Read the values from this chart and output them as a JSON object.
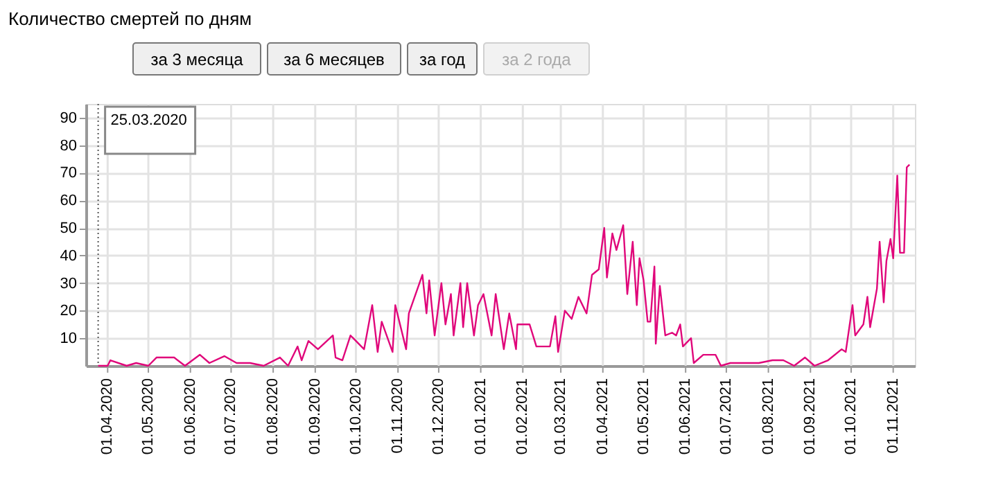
{
  "chart_data": {
    "type": "line",
    "title": "Количество смертей по дням",
    "annotations": [
      "за 3 месяца",
      "за 6 месяцев",
      "за год",
      "за 2 года"
    ],
    "x": [
      "2020-03-25",
      "2020-04-01",
      "2020-04-03",
      "2020-04-15",
      "2020-04-22",
      "2020-05-01",
      "2020-05-07",
      "2020-05-20",
      "2020-05-28",
      "2020-06-08",
      "2020-06-15",
      "2020-06-26",
      "2020-07-05",
      "2020-07-15",
      "2020-07-25",
      "2020-08-06",
      "2020-08-12",
      "2020-08-19",
      "2020-08-22",
      "2020-08-27",
      "2020-09-03",
      "2020-09-14",
      "2020-09-16",
      "2020-09-21",
      "2020-09-27",
      "2020-10-07",
      "2020-10-13",
      "2020-10-17",
      "2020-10-20",
      "2020-10-28",
      "2020-10-30",
      "2020-11-07",
      "2020-11-09",
      "2020-11-19",
      "2020-11-22",
      "2020-11-24",
      "2020-11-28",
      "2020-12-03",
      "2020-12-06",
      "2020-12-10",
      "2020-12-12",
      "2020-12-17",
      "2020-12-19",
      "2020-12-22",
      "2020-12-27",
      "2020-12-30",
      "2021-01-03",
      "2021-01-09",
      "2021-01-12",
      "2021-01-18",
      "2021-01-22",
      "2021-01-27",
      "2021-01-28",
      "2021-02-06",
      "2021-02-11",
      "2021-02-21",
      "2021-02-25",
      "2021-02-27",
      "2021-03-04",
      "2021-03-09",
      "2021-03-14",
      "2021-03-20",
      "2021-03-24",
      "2021-03-29",
      "2021-04-02",
      "2021-04-04",
      "2021-04-08",
      "2021-04-11",
      "2021-04-16",
      "2021-04-19",
      "2021-04-23",
      "2021-04-26",
      "2021-04-28",
      "2021-05-01",
      "2021-05-04",
      "2021-05-06",
      "2021-05-09",
      "2021-05-10",
      "2021-05-13",
      "2021-05-17",
      "2021-05-22",
      "2021-05-25",
      "2021-05-28",
      "2021-05-30",
      "2021-06-05",
      "2021-06-07",
      "2021-06-14",
      "2021-06-23",
      "2021-06-27",
      "2021-07-04",
      "2021-07-18",
      "2021-07-25",
      "2021-08-04",
      "2021-08-12",
      "2021-08-20",
      "2021-08-28",
      "2021-09-04",
      "2021-09-14",
      "2021-09-24",
      "2021-09-27",
      "2021-10-02",
      "2021-10-04",
      "2021-10-10",
      "2021-10-13",
      "2021-10-15",
      "2021-10-20",
      "2021-10-22",
      "2021-10-25",
      "2021-10-27",
      "2021-10-30",
      "2021-11-01",
      "2021-11-04",
      "2021-11-06",
      "2021-11-09",
      "2021-11-11",
      "2021-11-13"
    ],
    "series": [
      {
        "color": "#e0067a",
        "values": [
          0,
          0,
          2,
          0,
          1,
          0,
          3,
          3,
          0,
          4,
          1,
          3.5,
          1,
          1,
          0,
          3,
          0,
          7,
          2,
          9,
          6,
          11,
          3,
          2,
          11,
          6,
          22,
          5,
          16,
          5,
          22,
          6,
          19,
          33,
          19,
          31,
          11,
          30,
          15,
          26,
          11,
          30,
          14,
          30,
          11,
          22,
          26,
          11,
          26,
          6,
          19,
          6,
          15,
          15,
          7,
          7,
          18,
          5,
          20,
          17,
          25,
          19,
          33,
          35,
          50,
          32,
          48,
          42,
          51,
          26,
          45,
          22,
          39,
          31,
          16,
          16,
          36,
          8,
          29,
          11,
          12,
          11,
          15,
          7,
          10,
          1,
          4,
          4,
          0,
          1,
          1,
          1,
          2,
          2,
          0,
          3,
          0,
          2,
          6,
          5,
          22,
          11,
          15,
          25,
          14,
          28,
          45,
          23,
          38,
          46,
          39,
          69,
          41,
          41,
          72,
          73
        ]
      }
    ],
    "xlim": [
      "2020-03-16",
      "2021-11-17"
    ],
    "xticks": [
      {
        "value": "2020-04-01",
        "label": "01.04.2020"
      },
      {
        "value": "2020-05-01",
        "label": "01.05.2020"
      },
      {
        "value": "2020-06-01",
        "label": "01.06.2020"
      },
      {
        "value": "2020-07-01",
        "label": "01.07.2020"
      },
      {
        "value": "2020-08-01",
        "label": "01.08.2020"
      },
      {
        "value": "2020-09-01",
        "label": "01.09.2020"
      },
      {
        "value": "2020-10-01",
        "label": "01.10.2020"
      },
      {
        "value": "2020-11-01",
        "label": "01.11.2020"
      },
      {
        "value": "2020-12-01",
        "label": "01.12.2020"
      },
      {
        "value": "2021-01-01",
        "label": "01.01.2021"
      },
      {
        "value": "2021-02-01",
        "label": "01.02.2021"
      },
      {
        "value": "2021-03-01",
        "label": "01.03.2021"
      },
      {
        "value": "2021-04-01",
        "label": "01.04.2021"
      },
      {
        "value": "2021-05-01",
        "label": "01.05.2021"
      },
      {
        "value": "2021-06-01",
        "label": "01.06.2021"
      },
      {
        "value": "2021-07-01",
        "label": "01.07.2021"
      },
      {
        "value": "2021-08-01",
        "label": "01.08.2021"
      },
      {
        "value": "2021-09-01",
        "label": "01.09.2021"
      },
      {
        "value": "2021-10-01",
        "label": "01.10.2021"
      },
      {
        "value": "2021-11-01",
        "label": "01.11.2021"
      }
    ],
    "ylim": [
      0,
      95
    ],
    "yticks": [
      10,
      20,
      30,
      40,
      50,
      60,
      70,
      80,
      90
    ],
    "grid": true,
    "ref_lines": [
      {
        "axis": "x",
        "value": "2020-03-25",
        "label": "25.03.2020",
        "line_style": "dotted",
        "color": "#555555"
      }
    ]
  }
}
